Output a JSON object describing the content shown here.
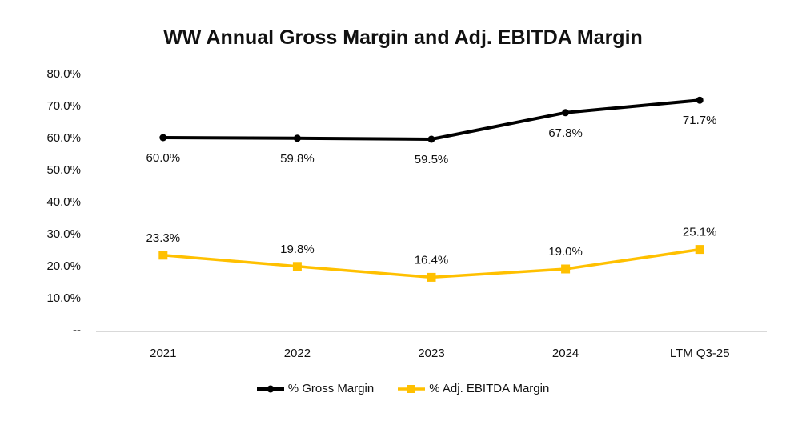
{
  "chart_data": {
    "type": "line",
    "title": "WW Annual Gross Margin and Adj. EBITDA Margin",
    "categories": [
      "2021",
      "2022",
      "2023",
      "2024",
      "LTM Q3-25"
    ],
    "series": [
      {
        "name": "% Gross Margin",
        "values": [
          60.0,
          59.8,
          59.5,
          67.8,
          71.7
        ],
        "labels": [
          "60.0%",
          "59.8%",
          "59.5%",
          "67.8%",
          "71.7%"
        ],
        "color": "#000000",
        "marker": "circle",
        "line_width": 4,
        "label_position": "below"
      },
      {
        "name": "% Adj. EBITDA Margin",
        "values": [
          23.3,
          19.8,
          16.4,
          19.0,
          25.1
        ],
        "labels": [
          "23.3%",
          "19.8%",
          "16.4%",
          "19.0%",
          "25.1%"
        ],
        "color": "#FFC000",
        "marker": "square",
        "line_width": 3.5,
        "label_position": "above"
      }
    ],
    "y_axis": {
      "min": 0,
      "max": 80,
      "step": 10,
      "ticks": [
        {
          "value": 80,
          "label": "80.0%"
        },
        {
          "value": 70,
          "label": "70.0%"
        },
        {
          "value": 60,
          "label": "60.0%"
        },
        {
          "value": 50,
          "label": "50.0%"
        },
        {
          "value": 40,
          "label": "40.0%"
        },
        {
          "value": 30,
          "label": "30.0%"
        },
        {
          "value": 20,
          "label": "20.0%"
        },
        {
          "value": 10,
          "label": "10.0%"
        },
        {
          "value": 0,
          "label": "--"
        }
      ]
    },
    "grid": false,
    "axis_line_color": "#d9d9d9",
    "legend_position": "bottom"
  }
}
